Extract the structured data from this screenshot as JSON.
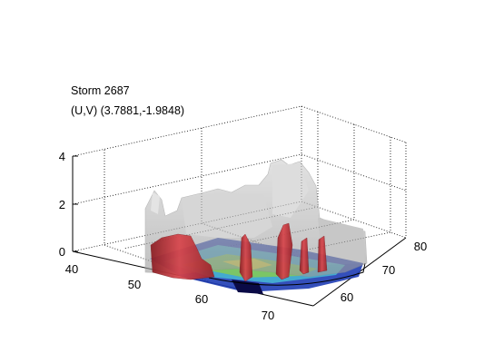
{
  "title_lines": [
    "Storm 2687",
    "(U,V) (3.7881,-1.9848)"
  ],
  "chart_data": {
    "type": "surface3d",
    "title": "Storm 2687",
    "subtitle": "(U,V) (3.7881,-1.9848)",
    "x_ticks": [
      "40",
      "50",
      "60",
      "70"
    ],
    "y_ticks": [
      "60",
      "70",
      "80"
    ],
    "z_ticks": [
      "0",
      "2",
      "4"
    ],
    "xlim": [
      40,
      74
    ],
    "ylim": [
      55,
      81
    ],
    "zlim": [
      0,
      4
    ],
    "grid": true,
    "colors": {
      "translucent_surface": "#a9a9a9",
      "core_isosurface": "#c8343c",
      "base_high": "#1e3cb4",
      "base_mid": "#46b4d2",
      "base_low": "#82c85a",
      "base_peak": "#e6dc3c",
      "base_deep": "#0a0a46"
    }
  }
}
